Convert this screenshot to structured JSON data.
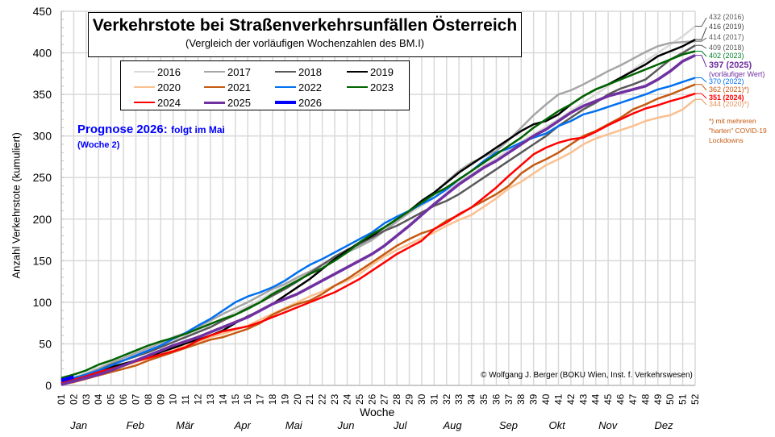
{
  "chart_data": {
    "type": "line",
    "title": "Verkehrstote bei Straßenverkehrsunfällen Österreich",
    "subtitle": "(Vergleich der vorläufigen Wochenzahlen des BM.I)",
    "xlabel": "Woche",
    "ylabel": "Anzahl Verkehrstote (kumuliert)",
    "ylim": [
      0,
      450
    ],
    "yticks": [
      0,
      50,
      100,
      150,
      200,
      250,
      300,
      350,
      400,
      450
    ],
    "grid": true,
    "legend_position": "top-left",
    "x": [
      "01",
      "02",
      "03",
      "04",
      "05",
      "06",
      "07",
      "08",
      "09",
      "10",
      "11",
      "12",
      "13",
      "14",
      "15",
      "16",
      "17",
      "18",
      "19",
      "20",
      "21",
      "22",
      "23",
      "24",
      "25",
      "26",
      "27",
      "28",
      "29",
      "30",
      "31",
      "32",
      "33",
      "34",
      "35",
      "36",
      "37",
      "38",
      "39",
      "40",
      "41",
      "42",
      "43",
      "44",
      "45",
      "46",
      "47",
      "48",
      "49",
      "50",
      "51",
      "52"
    ],
    "months": [
      {
        "label": "Jan",
        "week": 2.5
      },
      {
        "label": "Feb",
        "week": 7
      },
      {
        "label": "Mär",
        "week": 11
      },
      {
        "label": "Apr",
        "week": 15.7
      },
      {
        "label": "Mai",
        "week": 19.8
      },
      {
        "label": "Jun",
        "week": 24
      },
      {
        "label": "Jul",
        "week": 28.5
      },
      {
        "label": "Aug",
        "week": 32.5
      },
      {
        "label": "Sep",
        "week": 37
      },
      {
        "label": "Okt",
        "week": 41
      },
      {
        "label": "Nov",
        "week": 45
      },
      {
        "label": "Dez",
        "week": 49.5
      }
    ],
    "series": [
      {
        "name": "2016",
        "color": "#d9d9d9",
        "width": 2,
        "values": [
          5,
          10,
          15,
          22,
          28,
          33,
          38,
          42,
          48,
          55,
          60,
          66,
          72,
          80,
          88,
          95,
          103,
          112,
          120,
          128,
          137,
          146,
          154,
          163,
          172,
          181,
          190,
          198,
          207,
          216,
          226,
          235,
          245,
          254,
          264,
          273,
          283,
          293,
          302,
          311,
          320,
          330,
          340,
          350,
          360,
          370,
          380,
          390,
          400,
          410,
          420,
          432
        ]
      },
      {
        "name": "2017",
        "color": "#a6a6a6",
        "width": 2,
        "values": [
          4,
          8,
          14,
          20,
          27,
          33,
          39,
          45,
          51,
          58,
          63,
          70,
          78,
          86,
          93,
          100,
          108,
          116,
          122,
          130,
          137,
          145,
          153,
          160,
          167,
          175,
          186,
          197,
          208,
          220,
          232,
          245,
          258,
          268,
          275,
          282,
          295,
          310,
          325,
          338,
          350,
          355,
          362,
          370,
          378,
          385,
          393,
          401,
          408,
          412,
          413,
          414
        ]
      },
      {
        "name": "2018",
        "color": "#595959",
        "width": 2,
        "values": [
          3,
          8,
          13,
          18,
          25,
          30,
          35,
          40,
          46,
          52,
          58,
          64,
          70,
          78,
          85,
          93,
          100,
          108,
          116,
          125,
          135,
          145,
          155,
          163,
          170,
          178,
          186,
          192,
          200,
          208,
          216,
          222,
          230,
          240,
          250,
          260,
          270,
          280,
          290,
          300,
          312,
          322,
          332,
          340,
          350,
          357,
          362,
          368,
          380,
          392,
          400,
          409
        ]
      },
      {
        "name": "2019",
        "color": "#000000",
        "width": 2,
        "values": [
          2,
          6,
          12,
          18,
          22,
          26,
          30,
          34,
          40,
          45,
          50,
          55,
          60,
          66,
          75,
          83,
          90,
          98,
          108,
          118,
          128,
          140,
          152,
          162,
          172,
          180,
          190,
          200,
          210,
          222,
          232,
          244,
          256,
          266,
          276,
          286,
          296,
          306,
          314,
          318,
          326,
          338,
          348,
          356,
          362,
          370,
          378,
          386,
          396,
          402,
          408,
          416
        ]
      },
      {
        "name": "2020",
        "color": "#fac090",
        "width": 2,
        "values": [
          2,
          6,
          10,
          14,
          19,
          23,
          28,
          33,
          37,
          42,
          48,
          53,
          58,
          62,
          67,
          72,
          79,
          86,
          93,
          100,
          107,
          113,
          120,
          126,
          134,
          145,
          155,
          163,
          170,
          177,
          184,
          192,
          199,
          205,
          215,
          225,
          237,
          245,
          255,
          265,
          272,
          280,
          290,
          297,
          302,
          307,
          312,
          318,
          322,
          325,
          332,
          344
        ]
      },
      {
        "name": "2021",
        "color": "#c55a11",
        "width": 2,
        "values": [
          1,
          4,
          8,
          12,
          16,
          20,
          24,
          30,
          35,
          40,
          45,
          50,
          55,
          58,
          63,
          68,
          75,
          85,
          92,
          98,
          102,
          110,
          120,
          128,
          138,
          148,
          158,
          168,
          176,
          183,
          188,
          198,
          205,
          214,
          222,
          230,
          240,
          255,
          265,
          272,
          280,
          290,
          300,
          306,
          314,
          322,
          332,
          338,
          345,
          350,
          356,
          362
        ]
      },
      {
        "name": "2022",
        "color": "#0070f0",
        "width": 2,
        "values": [
          6,
          9,
          13,
          18,
          24,
          30,
          36,
          42,
          48,
          56,
          63,
          72,
          80,
          90,
          100,
          107,
          112,
          118,
          126,
          136,
          145,
          152,
          160,
          168,
          176,
          184,
          195,
          203,
          210,
          218,
          226,
          236,
          248,
          258,
          270,
          280,
          285,
          292,
          298,
          303,
          312,
          318,
          326,
          330,
          335,
          340,
          345,
          350,
          356,
          360,
          365,
          370
        ]
      },
      {
        "name": "2023",
        "color": "#006400",
        "width": 2,
        "values": [
          9,
          13,
          18,
          25,
          30,
          36,
          42,
          48,
          53,
          57,
          62,
          68,
          74,
          80,
          85,
          92,
          100,
          110,
          118,
          126,
          134,
          141,
          150,
          160,
          172,
          182,
          190,
          200,
          210,
          220,
          230,
          238,
          248,
          258,
          268,
          278,
          288,
          298,
          310,
          320,
          330,
          338,
          348,
          356,
          362,
          368,
          374,
          380,
          386,
          392,
          398,
          402
        ]
      },
      {
        "name": "2024",
        "color": "#ff0000",
        "width": 2,
        "values": [
          3,
          7,
          11,
          16,
          20,
          24,
          29,
          33,
          37,
          41,
          46,
          54,
          60,
          65,
          68,
          71,
          76,
          82,
          88,
          94,
          100,
          106,
          112,
          120,
          128,
          138,
          148,
          158,
          166,
          174,
          188,
          196,
          206,
          214,
          226,
          238,
          252,
          265,
          278,
          286,
          292,
          296,
          298,
          305,
          313,
          320,
          327,
          333,
          337,
          342,
          346,
          351
        ]
      },
      {
        "name": "2025",
        "color": "#7030a0",
        "width": 3,
        "values": [
          1,
          5,
          9,
          13,
          18,
          24,
          30,
          36,
          42,
          48,
          53,
          58,
          64,
          70,
          76,
          82,
          90,
          98,
          104,
          110,
          118,
          126,
          134,
          142,
          150,
          158,
          168,
          180,
          192,
          205,
          218,
          230,
          242,
          252,
          262,
          270,
          280,
          290,
          300,
          308,
          318,
          328,
          336,
          342,
          348,
          352,
          356,
          360,
          368,
          378,
          390,
          397
        ]
      },
      {
        "name": "2026",
        "color": "#0000ff",
        "width": 4,
        "values": [
          6,
          10
        ]
      }
    ],
    "end_labels": [
      {
        "text": "432 (2016)",
        "color": "#595959",
        "value": 432
      },
      {
        "text": "416 (2019)",
        "color": "#404040",
        "value": 416
      },
      {
        "text": "414 (2017)",
        "color": "#595959",
        "value": 414
      },
      {
        "text": "409 (2018)",
        "color": "#595959",
        "value": 409
      },
      {
        "text": "402 (2023)",
        "color": "#00802b",
        "value": 402
      },
      {
        "text": "397 (2025)",
        "color": "#7030a0",
        "value": 397,
        "bold": true
      },
      {
        "text": "(vorläufiger Wert)",
        "color": "#7030a0",
        "value": 397
      },
      {
        "text": "370 (2022)",
        "color": "#0070f0",
        "value": 370
      },
      {
        "text": "362 (2021)*)",
        "color": "#c55a11",
        "value": 362
      },
      {
        "text": "351 (2024)",
        "color": "#ff0000",
        "value": 351,
        "bold": true
      },
      {
        "text": "344 (2020)*)",
        "color": "#e3925a",
        "value": 344
      }
    ],
    "annotations": {
      "prognose_big": "Prognose 2026:",
      "prognose_small": "folgt im Mai",
      "prognose_week": "(Woche  2)",
      "footnote": "*) mit mehreren \"harten\" COVID-19 Lockdowns",
      "copyright": "© Wolfgang J. Berger (BOKU Wien, Inst. f. Verkehrswesen)"
    }
  }
}
